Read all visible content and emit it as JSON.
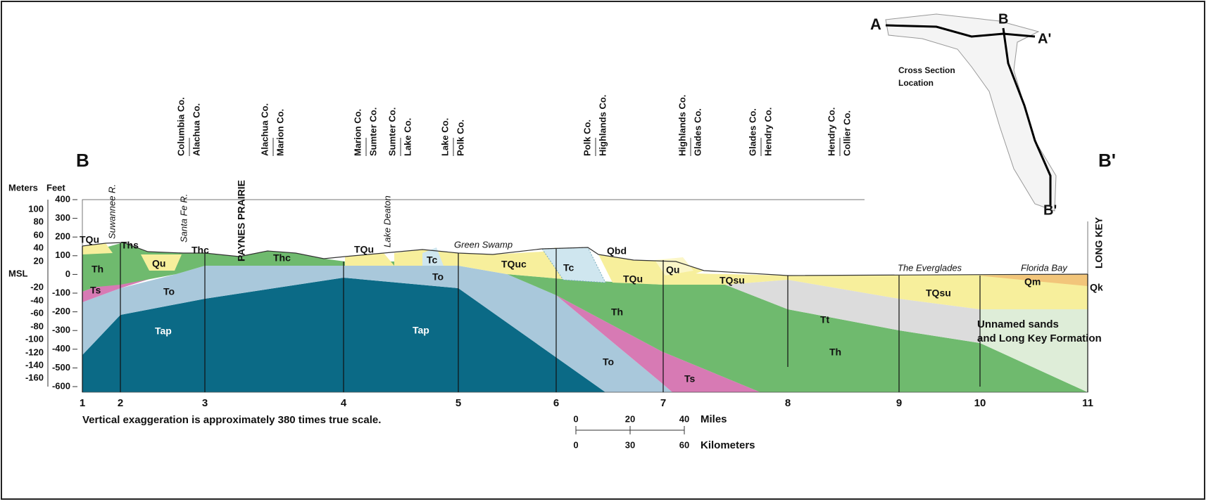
{
  "section": {
    "start": "B",
    "end": "B'"
  },
  "axis": {
    "meters_title": "Meters",
    "feet_title": "Feet",
    "msl": "MSL",
    "meters": [
      "100",
      "80",
      "60",
      "40",
      "20",
      "-20",
      "-40",
      "-60",
      "-80",
      "-100",
      "-120",
      "-140",
      "-160"
    ],
    "feet": [
      "400",
      "300",
      "200",
      "100",
      "0",
      "-100",
      "-200",
      "-300",
      "-400",
      "-500",
      "-600"
    ]
  },
  "wells": [
    "1",
    "2",
    "3",
    "4",
    "5",
    "6",
    "7",
    "8",
    "9",
    "10",
    "11"
  ],
  "counties": [
    [
      "Columbia Co.",
      "Alachua Co."
    ],
    [
      "Alachua Co.",
      "Marion Co."
    ],
    [
      "Marion Co.",
      "Sumter Co."
    ],
    [
      "Sumter Co.",
      "Lake Co."
    ],
    [
      "Lake Co.",
      "Polk Co."
    ],
    [
      "Polk Co.",
      "Highlands Co."
    ],
    [
      "Highlands Co.",
      "Glades Co."
    ],
    [
      "Glades Co.",
      "Hendry Co."
    ],
    [
      "Hendry Co.",
      "Collier Co."
    ]
  ],
  "features": [
    "Suwannee R.",
    "Santa Fe R.",
    "PAYNES PRAIRIE",
    "Lake Deaton",
    "LONG KEY"
  ],
  "places": [
    "Green Swamp",
    "The Everglades",
    "Florida Bay"
  ],
  "units": [
    "TQu",
    "Ths",
    "Qu",
    "Thc",
    "Thc",
    "TQu",
    "Tc",
    "Tc",
    "TQuc",
    "Qbd",
    "Qu",
    "TQu",
    "TQsu",
    "TQsu",
    "Qm",
    "Qk",
    "Th",
    "Ts",
    "To",
    "To",
    "Tap",
    "Tap",
    "Th",
    "Th",
    "To",
    "Ts",
    "Tt",
    "Unnamed sands",
    "and Long Key Formation"
  ],
  "caption": "Vertical exaggeration is approximately 380 times true scale.",
  "scale": {
    "miles_ticks": [
      "0",
      "20",
      "40"
    ],
    "miles": "Miles",
    "km_ticks": [
      "0",
      "30",
      "60"
    ],
    "km": "Kilometers"
  },
  "inset": {
    "labels": [
      "A",
      "B",
      "A'",
      "B'"
    ],
    "title": [
      "Cross Section",
      "Location"
    ]
  }
}
